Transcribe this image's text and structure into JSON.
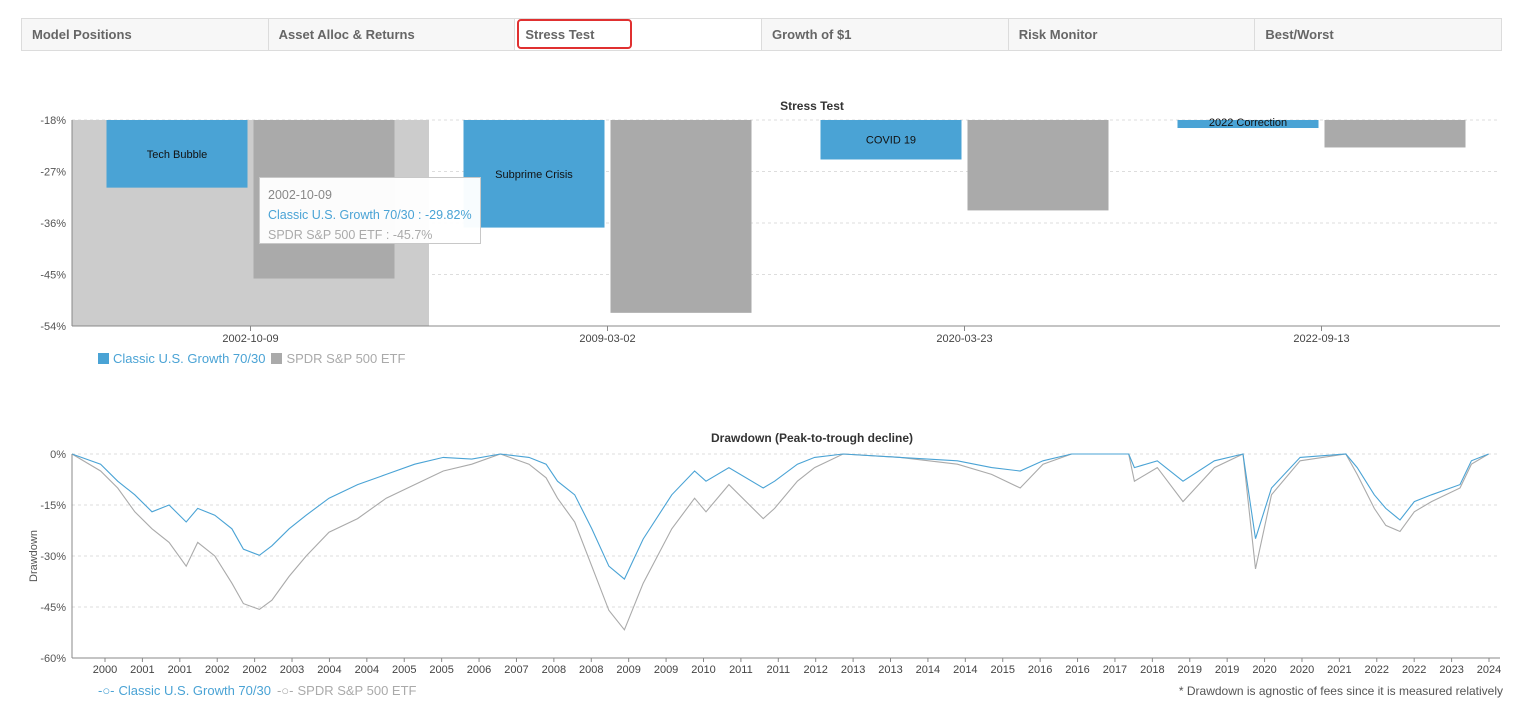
{
  "tabs": [
    {
      "label": "Model Positions",
      "active": false
    },
    {
      "label": "Asset Alloc & Returns",
      "active": false
    },
    {
      "label": "Stress Test",
      "active": true
    },
    {
      "label": "Growth of $1",
      "active": false
    },
    {
      "label": "Risk Monitor",
      "active": false
    },
    {
      "label": "Best/Worst",
      "active": false
    }
  ],
  "colors": {
    "model": "#4aa3d5",
    "spdr": "#aaaaaa",
    "highlight_band": "#cccccc",
    "active_tab_outline": "#e03030"
  },
  "tooltip": {
    "date": "2002-10-09",
    "model_line": "Classic U.S. Growth 70/30 : -29.82%",
    "spdr_line": "SPDR S&P 500 ETF : -45.7%"
  },
  "footnote": "* Drawdown is agnostic of fees since it is measured relatively",
  "chart_data": [
    {
      "type": "bar",
      "title": "Stress Test",
      "categories": [
        "2002-10-09",
        "2009-03-02",
        "2020-03-23",
        "2022-09-13"
      ],
      "annotations": [
        "Tech Bubble",
        "Subprime Crisis",
        "COVID 19",
        "2022 Correction"
      ],
      "series": [
        {
          "name": "Classic U.S. Growth 70/30",
          "values": [
            -29.82,
            -36.8,
            -24.9,
            -19.4
          ]
        },
        {
          "name": "SPDR S&P 500 ETF",
          "values": [
            -45.7,
            -51.7,
            -33.8,
            -22.8
          ]
        }
      ],
      "ylim": [
        -54,
        -18
      ],
      "yticks": [
        "-18%",
        "-27%",
        "-36%",
        "-45%",
        "-54%"
      ],
      "highlighted_category": "2002-10-09",
      "legend": "bottom-left",
      "grid": true
    },
    {
      "type": "line",
      "title": "Drawdown (Peak-to-trough decline)",
      "ylabel": "Drawdown",
      "ylim": [
        -60,
        0
      ],
      "yticks": [
        "0%",
        "-15%",
        "-30%",
        "-45%",
        "-60%"
      ],
      "x_ticks": [
        "2000",
        "2001",
        "2001",
        "2002",
        "2002",
        "2003",
        "2004",
        "2004",
        "2005",
        "2005",
        "2006",
        "2007",
        "2008",
        "2008",
        "2009",
        "2009",
        "2010",
        "2011",
        "2011",
        "2012",
        "2013",
        "2013",
        "2014",
        "2014",
        "2015",
        "2016",
        "2016",
        "2017",
        "2018",
        "2019",
        "2019",
        "2020",
        "2020",
        "2021",
        "2022",
        "2022",
        "2023",
        "2024"
      ],
      "x_range": [
        1999.5,
        2024.5
      ],
      "legend": "bottom-left",
      "grid": true,
      "series": [
        {
          "name": "Classic U.S. Growth 70/30",
          "x": [
            1999.5,
            2000.0,
            2000.3,
            2000.6,
            2000.9,
            2001.2,
            2001.5,
            2001.7,
            2002.0,
            2002.3,
            2002.5,
            2002.78,
            2003.0,
            2003.3,
            2003.6,
            2004.0,
            2004.5,
            2005.0,
            2005.5,
            2006.0,
            2006.5,
            2007.0,
            2007.5,
            2007.8,
            2008.0,
            2008.3,
            2008.6,
            2008.9,
            2009.17,
            2009.5,
            2010.0,
            2010.4,
            2010.6,
            2011.0,
            2011.6,
            2011.8,
            2012.2,
            2012.5,
            2013.0,
            2014.0,
            2015.0,
            2015.6,
            2016.1,
            2016.5,
            2017.0,
            2018.0,
            2018.1,
            2018.5,
            2018.95,
            2019.5,
            2020.0,
            2020.22,
            2020.5,
            2021.0,
            2021.8,
            2022.0,
            2022.3,
            2022.5,
            2022.75,
            2023.0,
            2023.3,
            2023.8,
            2024.0,
            2024.3
          ],
          "values": [
            0,
            -3,
            -8,
            -12,
            -17,
            -15,
            -20,
            -16,
            -18,
            -22,
            -28,
            -29.8,
            -27,
            -22,
            -18,
            -13,
            -9,
            -6,
            -3,
            -1,
            -1.5,
            0,
            -1,
            -3,
            -8,
            -12,
            -22,
            -33,
            -36.8,
            -25,
            -12,
            -5,
            -8,
            -4,
            -10,
            -8,
            -3,
            -1,
            0,
            -1,
            -2,
            -4,
            -5,
            -2,
            0,
            0,
            -4,
            -2,
            -8,
            -2,
            0,
            -24.9,
            -10,
            -1,
            0,
            -4,
            -12,
            -16,
            -19.4,
            -14,
            -12,
            -9,
            -2,
            0
          ]
        },
        {
          "name": "SPDR S&P 500 ETF",
          "x": [
            1999.5,
            2000.0,
            2000.3,
            2000.6,
            2000.9,
            2001.2,
            2001.5,
            2001.7,
            2002.0,
            2002.3,
            2002.5,
            2002.78,
            2003.0,
            2003.3,
            2003.6,
            2004.0,
            2004.5,
            2005.0,
            2005.5,
            2006.0,
            2006.5,
            2007.0,
            2007.5,
            2007.8,
            2008.0,
            2008.3,
            2008.6,
            2008.9,
            2009.17,
            2009.5,
            2010.0,
            2010.4,
            2010.6,
            2011.0,
            2011.6,
            2011.8,
            2012.2,
            2012.5,
            2013.0,
            2014.0,
            2015.0,
            2015.6,
            2016.1,
            2016.5,
            2017.0,
            2018.0,
            2018.1,
            2018.5,
            2018.95,
            2019.5,
            2020.0,
            2020.22,
            2020.5,
            2021.0,
            2021.8,
            2022.0,
            2022.3,
            2022.5,
            2022.75,
            2023.0,
            2023.3,
            2023.8,
            2024.0,
            2024.3
          ],
          "values": [
            0,
            -5,
            -10,
            -17,
            -22,
            -26,
            -33,
            -26,
            -30,
            -38,
            -44,
            -45.7,
            -43,
            -36,
            -30,
            -23,
            -19,
            -13,
            -9,
            -5,
            -3,
            0,
            -3,
            -7,
            -13,
            -20,
            -33,
            -46,
            -51.7,
            -38,
            -22,
            -13,
            -17,
            -9,
            -19,
            -16,
            -8,
            -4,
            0,
            -1,
            -3,
            -6,
            -10,
            -3,
            0,
            0,
            -8,
            -4,
            -14,
            -4,
            0,
            -33.8,
            -12,
            -2,
            0,
            -6,
            -16,
            -21,
            -22.8,
            -17,
            -14,
            -10,
            -3,
            0
          ]
        }
      ]
    }
  ],
  "legend_bar": {
    "model": "Classic U.S. Growth 70/30",
    "spdr": "SPDR S&P 500 ETF"
  },
  "legend_line": {
    "model": "Classic U.S. Growth 70/30",
    "spdr": "SPDR S&P 500 ETF"
  }
}
